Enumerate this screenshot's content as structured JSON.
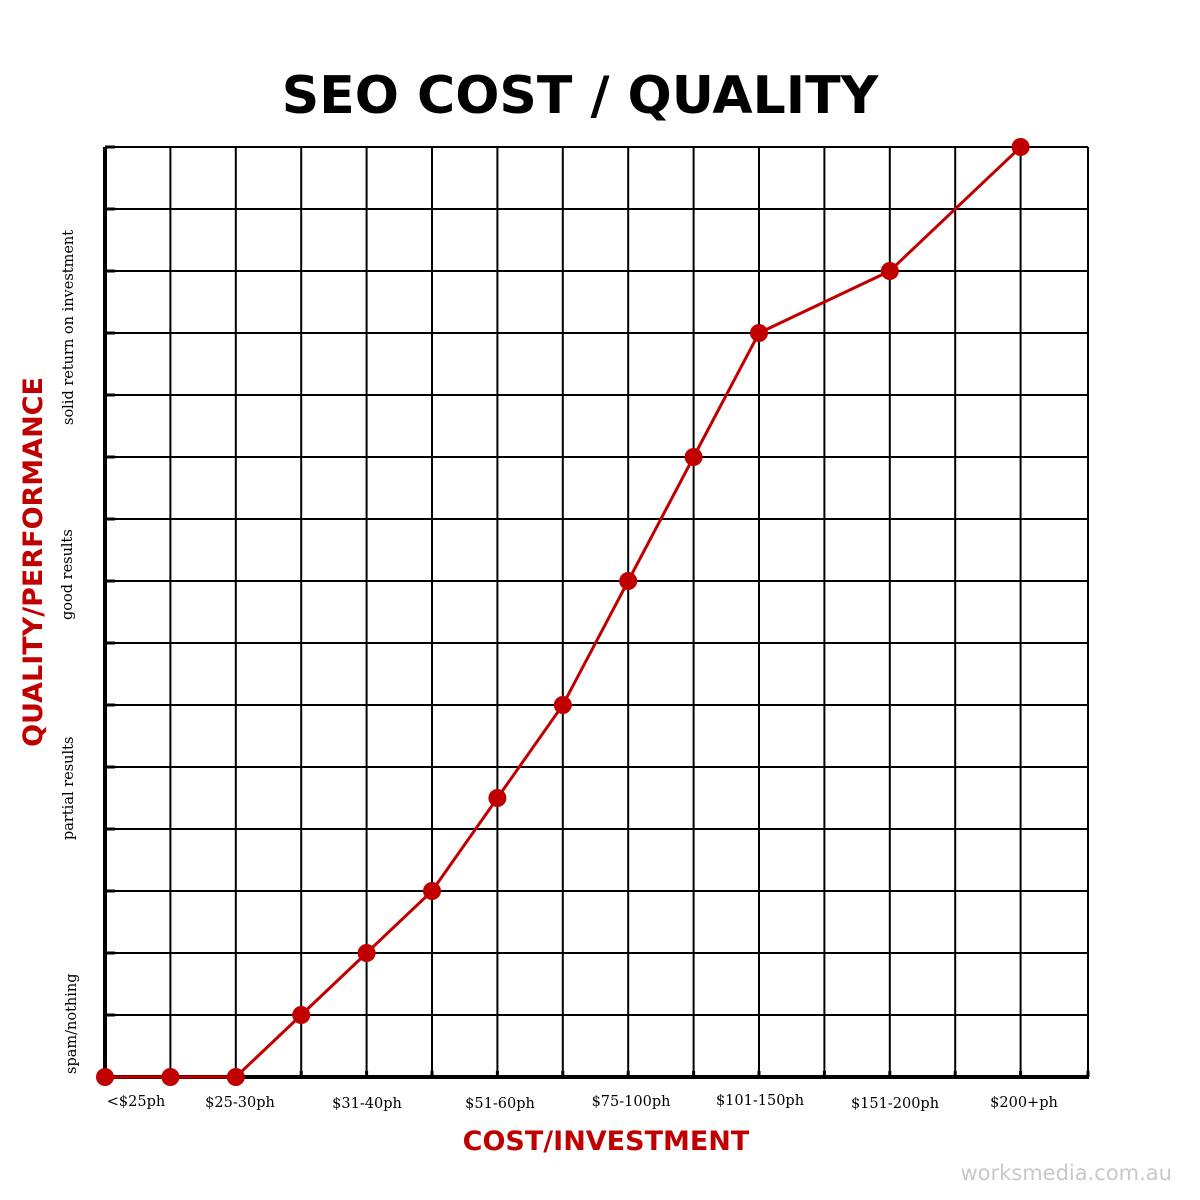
{
  "chart_data": {
    "type": "line",
    "title": "SEO COST / QUALITY",
    "xlabel": "COST/INVESTMENT",
    "ylabel": "QUALITY/PERFORMANCE",
    "x_tick_labels": [
      "<$25ph",
      "$25-30ph",
      "$31-40ph",
      "$51-60ph",
      "$75-100ph",
      "$101-150ph",
      "$151-200ph",
      "$200+ph"
    ],
    "y_quality_labels": [
      "spam/nothing",
      "partial results",
      "good results",
      "solid return on investment"
    ],
    "x_range": [
      0,
      15
    ],
    "y_range": [
      0,
      15
    ],
    "grid": true,
    "series": [
      {
        "color": "#c00000",
        "x": [
          0,
          1,
          2,
          3,
          4,
          5,
          6,
          7,
          8,
          9,
          10,
          12,
          14
        ],
        "y": [
          0,
          0,
          0,
          1,
          2,
          3,
          4.5,
          6,
          8,
          10,
          12,
          13,
          15
        ]
      }
    ]
  },
  "colors": {
    "accent": "#c00000",
    "grid": "#000000",
    "watermark": "#c8c8c8"
  },
  "watermark": "worksmedia.com.au"
}
